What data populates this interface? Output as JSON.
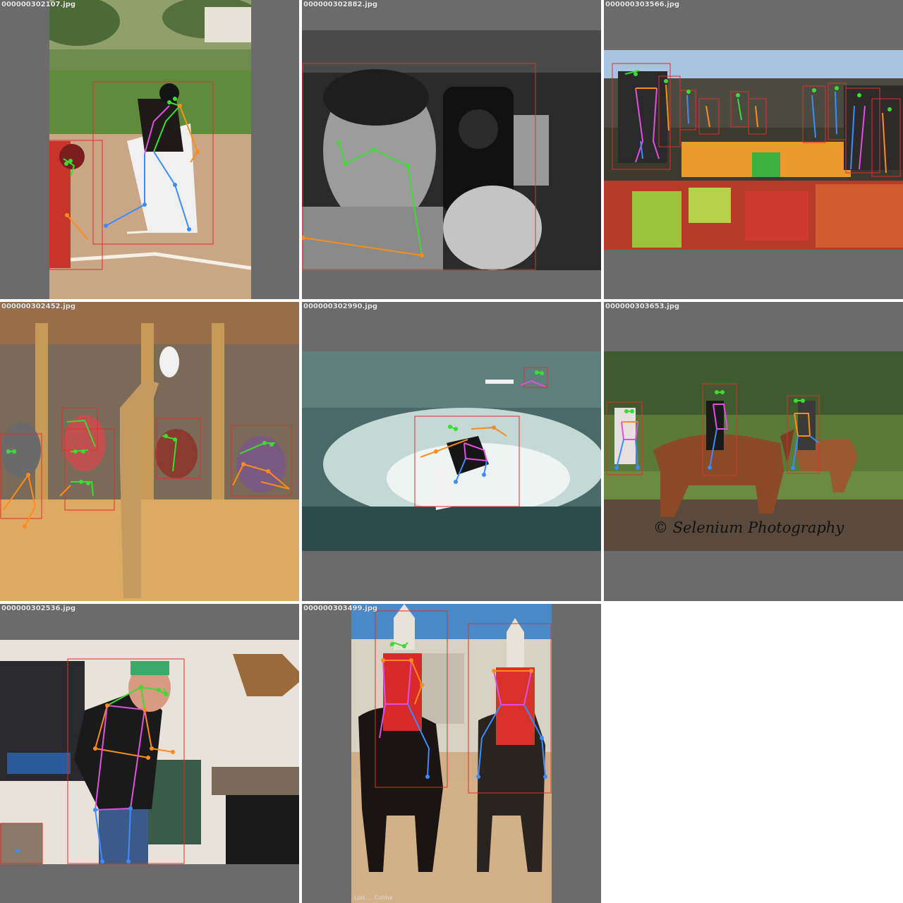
{
  "grid": {
    "columns": 3,
    "rows": 3
  },
  "colors": {
    "tile_bg": "#6b6b6b",
    "bbox": "#e0302a",
    "face": "#3cdc32",
    "left_limb": "#ff8c1a",
    "right_limb": "#3c8cff",
    "torso": "#e050e0"
  },
  "tiles": [
    {
      "id": "t1",
      "filename": "000000302107.jpg",
      "persons": 2
    },
    {
      "id": "t2",
      "filename": "000000302882.jpg",
      "persons": 1
    },
    {
      "id": "t3",
      "filename": "000000303566.jpg",
      "persons": 11
    },
    {
      "id": "t4",
      "filename": "000000302452.jpg",
      "persons": 5
    },
    {
      "id": "t5",
      "filename": "000000302990.jpg",
      "persons": 2
    },
    {
      "id": "t6",
      "filename": "000000303653.jpg",
      "persons": 3,
      "watermark": "© Selenium Photography"
    },
    {
      "id": "t7",
      "filename": "000000302536.jpg",
      "persons": 2
    },
    {
      "id": "t8",
      "filename": "000000303499.jpg",
      "persons": 2,
      "credit": "Luis ... Cunha"
    }
  ]
}
